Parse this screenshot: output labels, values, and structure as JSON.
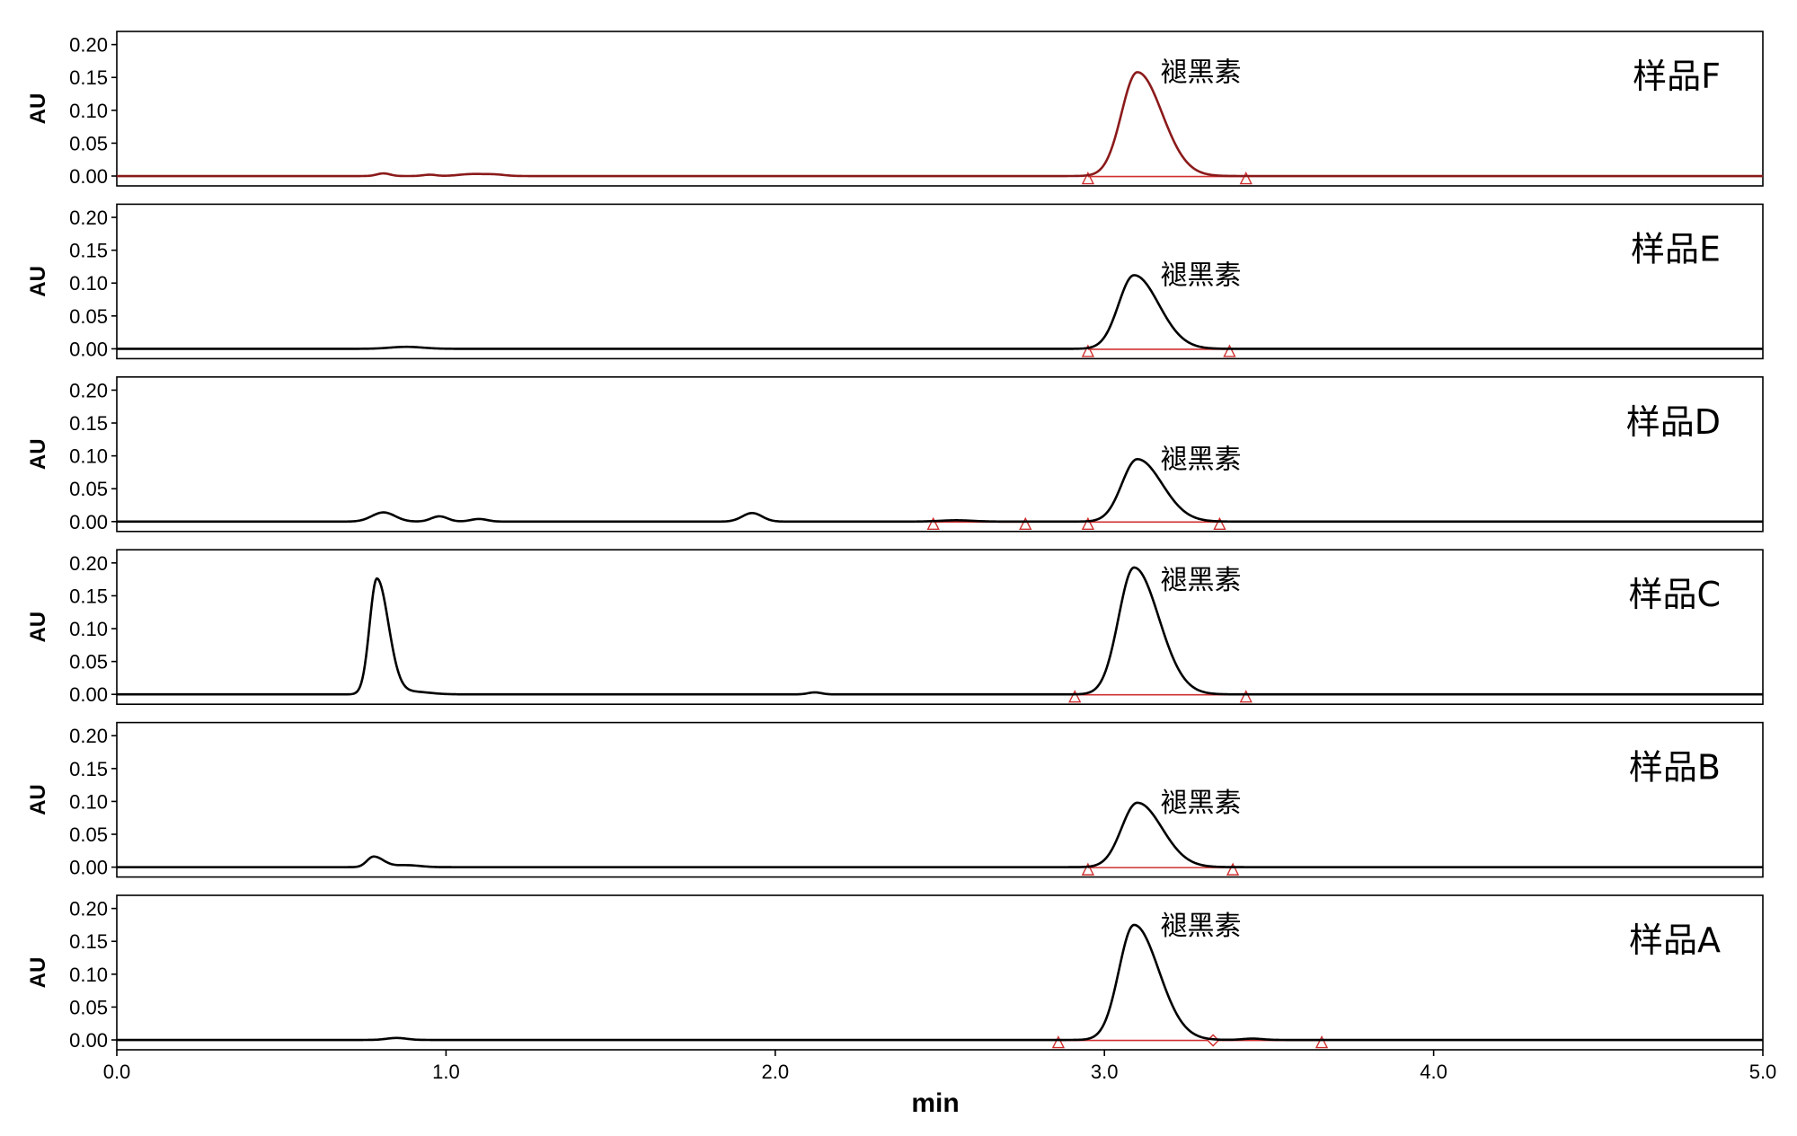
{
  "chart_data": {
    "type": "line",
    "xlabel": "min",
    "ylabel": "AU",
    "xlim": [
      0.0,
      5.0
    ],
    "ylim": [
      -0.015,
      0.22
    ],
    "x_ticks": [
      "0.0",
      "1.0",
      "2.0",
      "3.0",
      "4.0",
      "5.0"
    ],
    "y_ticks": [
      "0.00",
      "0.05",
      "0.10",
      "0.15",
      "0.20"
    ],
    "peak_label": "褪黑素",
    "colors": {
      "trace": "#000000",
      "integration": "#d03030",
      "frame": "#000000"
    },
    "panels": [
      {
        "name": "样品F",
        "peak_label": "褪黑素",
        "trace_color": "#8b1a1a",
        "peaks": [
          [
            0.81,
            0.004,
            0.02
          ],
          [
            0.95,
            0.002,
            0.02
          ],
          [
            1.08,
            0.003,
            0.04
          ],
          [
            1.15,
            0.002,
            0.03
          ],
          [
            3.1,
            0.158,
            0.048,
            0.075
          ]
        ],
        "baselines": [
          [
            2.95,
            3.43
          ]
        ]
      },
      {
        "name": "样品E",
        "peak_label": "褪黑素",
        "trace_color": "#000000",
        "peaks": [
          [
            0.88,
            0.003,
            0.05
          ],
          [
            3.09,
            0.112,
            0.047,
            0.075
          ]
        ],
        "baselines": [
          [
            2.95,
            3.38
          ]
        ]
      },
      {
        "name": "样品D",
        "peak_label": "褪黑素",
        "trace_color": "#000000",
        "peaks": [
          [
            0.81,
            0.014,
            0.035
          ],
          [
            0.98,
            0.008,
            0.025
          ],
          [
            1.1,
            0.004,
            0.025
          ],
          [
            1.93,
            0.013,
            0.03
          ],
          [
            2.55,
            0.002,
            0.05
          ],
          [
            3.1,
            0.095,
            0.047,
            0.075
          ]
        ],
        "baselines": [
          [
            2.48,
            2.76
          ],
          [
            2.95,
            3.35
          ]
        ]
      },
      {
        "name": "样品C",
        "peak_label": "褪黑素",
        "trace_color": "#000000",
        "peaks": [
          [
            0.79,
            0.176,
            0.022,
            0.035
          ],
          [
            0.9,
            0.004,
            0.05
          ],
          [
            2.12,
            0.003,
            0.02
          ],
          [
            3.09,
            0.193,
            0.047,
            0.075
          ]
        ],
        "baselines": [
          [
            2.91,
            3.43
          ]
        ]
      },
      {
        "name": "样品B",
        "peak_label": "褪黑素",
        "trace_color": "#000000",
        "peaks": [
          [
            0.78,
            0.016,
            0.02,
            0.03
          ],
          [
            0.88,
            0.003,
            0.04
          ],
          [
            3.1,
            0.098,
            0.048,
            0.075
          ]
        ],
        "baselines": [
          [
            2.95,
            3.39
          ]
        ]
      },
      {
        "name": "样品A",
        "peak_label": "褪黑素",
        "trace_color": "#000000",
        "peaks": [
          [
            0.85,
            0.003,
            0.03
          ],
          [
            3.09,
            0.175,
            0.046,
            0.075
          ],
          [
            3.45,
            0.002,
            0.03
          ]
        ],
        "baselines": [
          [
            2.86,
            3.33
          ],
          [
            3.33,
            3.66
          ]
        ],
        "diamond_marker": 3.33
      }
    ]
  }
}
